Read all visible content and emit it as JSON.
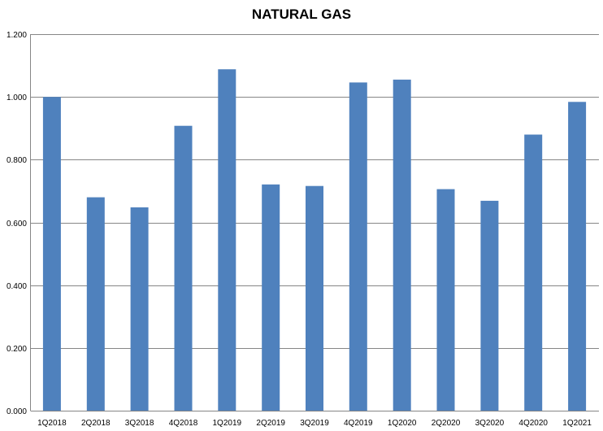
{
  "chart_data": {
    "type": "bar",
    "title": "NATURAL GAS",
    "xlabel": "",
    "ylabel": "",
    "categories": [
      "1Q2018",
      "2Q2018",
      "3Q2018",
      "4Q2018",
      "1Q2019",
      "2Q2019",
      "3Q2019",
      "4Q2019",
      "1Q2020",
      "2Q2020",
      "3Q2020",
      "4Q2020",
      "1Q2021"
    ],
    "values": [
      1.0,
      0.68,
      0.648,
      0.908,
      1.088,
      0.721,
      0.716,
      1.046,
      1.055,
      0.706,
      0.669,
      0.88,
      0.984
    ],
    "ylim": [
      0,
      1.2
    ],
    "yticks": [
      "0.000",
      "0.200",
      "0.400",
      "0.600",
      "0.800",
      "1.000",
      "1.200"
    ],
    "grid": true,
    "legend": "none",
    "bar_color": "#4F81BD"
  }
}
